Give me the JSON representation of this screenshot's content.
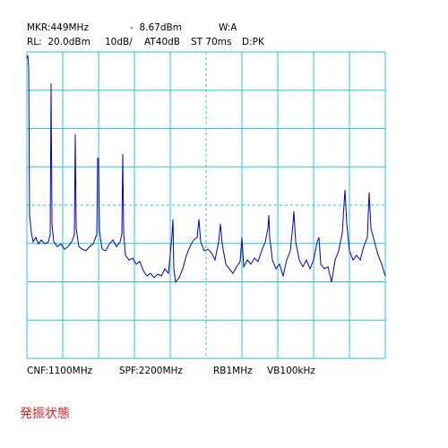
{
  "chart_data": {
    "type": "line",
    "header": [
      [
        "MKR:449MHz",
        "-  8.67dBm",
        "W:A"
      ],
      [
        "RL:  20.0dBm",
        "10dB/",
        "AT40dB",
        "ST 70ms",
        "D:PK"
      ]
    ],
    "footer": [
      "CNF:1100MHz",
      "SPF:2200MHz",
      "RB1MHz",
      "VB100kHz"
    ],
    "status": "発振状態",
    "xlim": [
      0,
      2200
    ],
    "xticks": [
      0,
      220,
      440,
      660,
      880,
      1100,
      1320,
      1540,
      1760,
      1980,
      2200
    ],
    "ylim": [
      -60,
      20
    ],
    "yticks": [
      -60,
      -50,
      -40,
      -30,
      -20,
      -10,
      0,
      10,
      20
    ],
    "grid": true,
    "grid_color": "#22cccc",
    "x": [
      0,
      5.5,
      11,
      16.5,
      27.5,
      38.5,
      55,
      71.5,
      88,
      110,
      132,
      143,
      148.5,
      154,
      165,
      187,
      209,
      231,
      253,
      275,
      291.5,
      297,
      302.5,
      319,
      341,
      363,
      385,
      407,
      429,
      434.5,
      440,
      445.5,
      462,
      484,
      506,
      528,
      550,
      572,
      583,
      588.5,
      594,
      605,
      627,
      649,
      671,
      693,
      715,
      737,
      759,
      781,
      803,
      825,
      847,
      869,
      891,
      896.5,
      902,
      913,
      935,
      957,
      979,
      1001,
      1023,
      1045,
      1056,
      1067,
      1089,
      1111,
      1133,
      1155,
      1177,
      1188,
      1199,
      1221,
      1243,
      1265,
      1287,
      1309,
      1320,
      1331,
      1353,
      1375,
      1397,
      1419,
      1441,
      1463,
      1479.5,
      1485,
      1490.5,
      1507,
      1529,
      1551,
      1573,
      1595,
      1617,
      1633.5,
      1639,
      1650,
      1672,
      1694,
      1716,
      1738,
      1760,
      1782,
      1793,
      1804,
      1826,
      1848,
      1870,
      1892,
      1914,
      1936,
      1952.5,
      1963.5,
      1980,
      2002,
      2024,
      2046,
      2068,
      2090,
      2101,
      2112,
      2134,
      2156,
      2178,
      2200
    ],
    "series": [
      {
        "color": "#0000cc",
        "values": [
          18.4,
          19.1,
          16.0,
          -22.6,
          -27.2,
          -29.6,
          -28.4,
          -30.1,
          -29.1,
          -30.1,
          -29.6,
          -27.7,
          11.8,
          -24.9,
          -29.6,
          -30.8,
          -30.1,
          -31.5,
          -30.8,
          -29.6,
          -27.7,
          -1.5,
          -26.1,
          -30.8,
          -31.5,
          -31.9,
          -30.8,
          -30.1,
          -27.7,
          -7.6,
          -8.1,
          -26.8,
          -31.5,
          -31.9,
          -30.1,
          -29.1,
          -30.8,
          -29.6,
          -27.7,
          -6.7,
          -27.2,
          -33.1,
          -34.3,
          -33.8,
          -35.4,
          -34.7,
          -37.1,
          -38.5,
          -37.8,
          -38.9,
          -38.0,
          -38.5,
          -36.6,
          -37.8,
          -27.7,
          -23.7,
          -36.6,
          -40.1,
          -38.9,
          -36.6,
          -33.1,
          -30.8,
          -29.1,
          -28.4,
          -23.7,
          -29.6,
          -31.9,
          -31.5,
          -32.4,
          -34.3,
          -29.6,
          -24.9,
          -30.1,
          -35.4,
          -36.6,
          -37.8,
          -36.1,
          -34.7,
          -28.4,
          -36.1,
          -34.3,
          -35.4,
          -33.8,
          -34.7,
          -31.9,
          -29.6,
          -26.1,
          -22.6,
          -28.4,
          -34.3,
          -36.6,
          -35.4,
          -38.5,
          -34.3,
          -31.9,
          -24.9,
          -21.6,
          -29.6,
          -34.3,
          -36.1,
          -34.3,
          -36.6,
          -34.3,
          -29.6,
          -28.4,
          -35.4,
          -36.6,
          -36.1,
          -40.1,
          -34.3,
          -31.9,
          -27.2,
          -16.0,
          -24.9,
          -31.9,
          -34.3,
          -33.1,
          -34.3,
          -30.8,
          -28.4,
          -16.7,
          -26.1,
          -29.6,
          -33.1,
          -35.4,
          -38.5
        ]
      }
    ]
  }
}
